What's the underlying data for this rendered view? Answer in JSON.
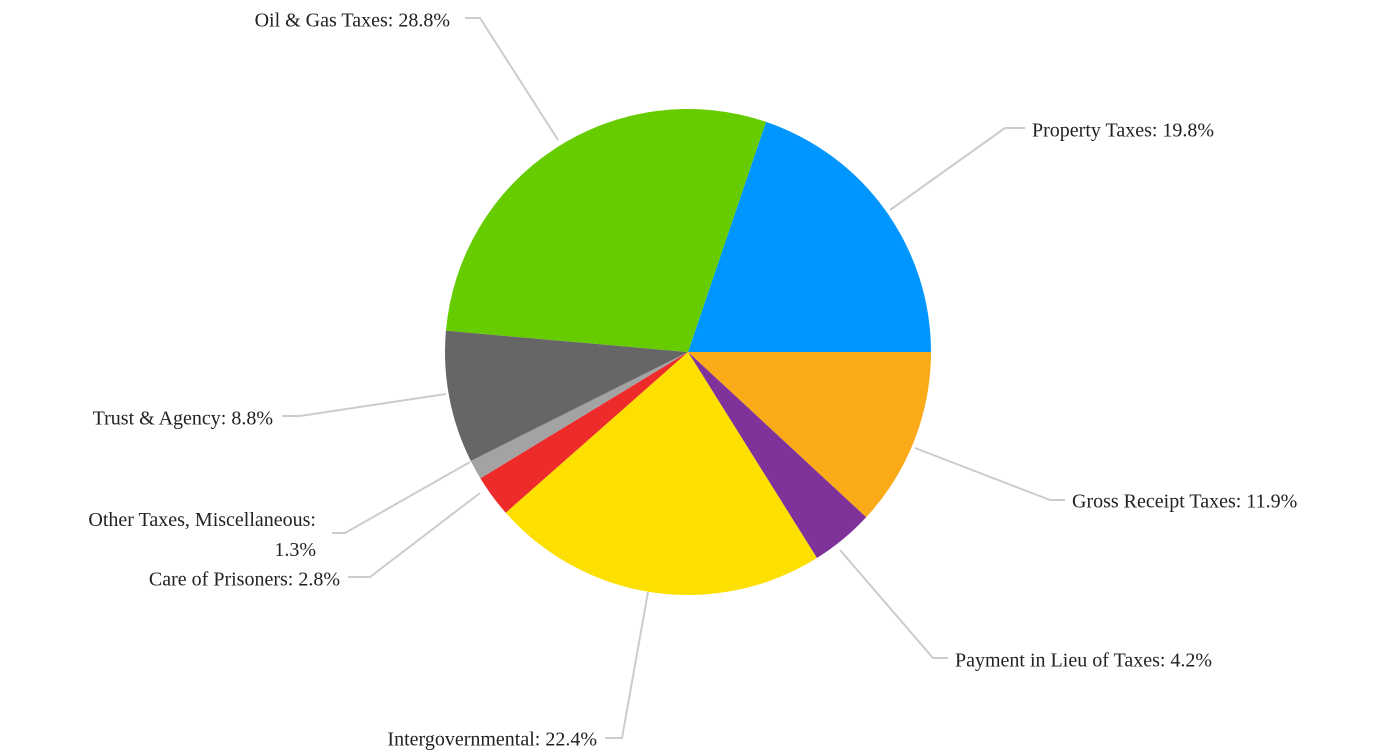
{
  "chart_data": {
    "type": "pie",
    "values": [
      19.8,
      11.9,
      4.2,
      22.4,
      2.8,
      1.3,
      8.8,
      28.8
    ],
    "value_labels": [
      "Property Taxes: 19.8%",
      "Gross Receipt Taxes: 11.9%",
      "Payment in Lieu of Taxes: 4.2%",
      "Intergovernmental: 22.4%",
      "Care of Prisoners: 2.8%",
      "Other Taxes, Miscellaneous: 1.3%",
      "Trust & Agency: 8.8%",
      "Oil & Gas Taxes: 28.8%"
    ],
    "colors": [
      "#0096ff",
      "#fbab18",
      "#7f3299",
      "#fde000",
      "#ee2b2b",
      "#a3a3a3",
      "#666666",
      "#66cc00"
    ]
  }
}
